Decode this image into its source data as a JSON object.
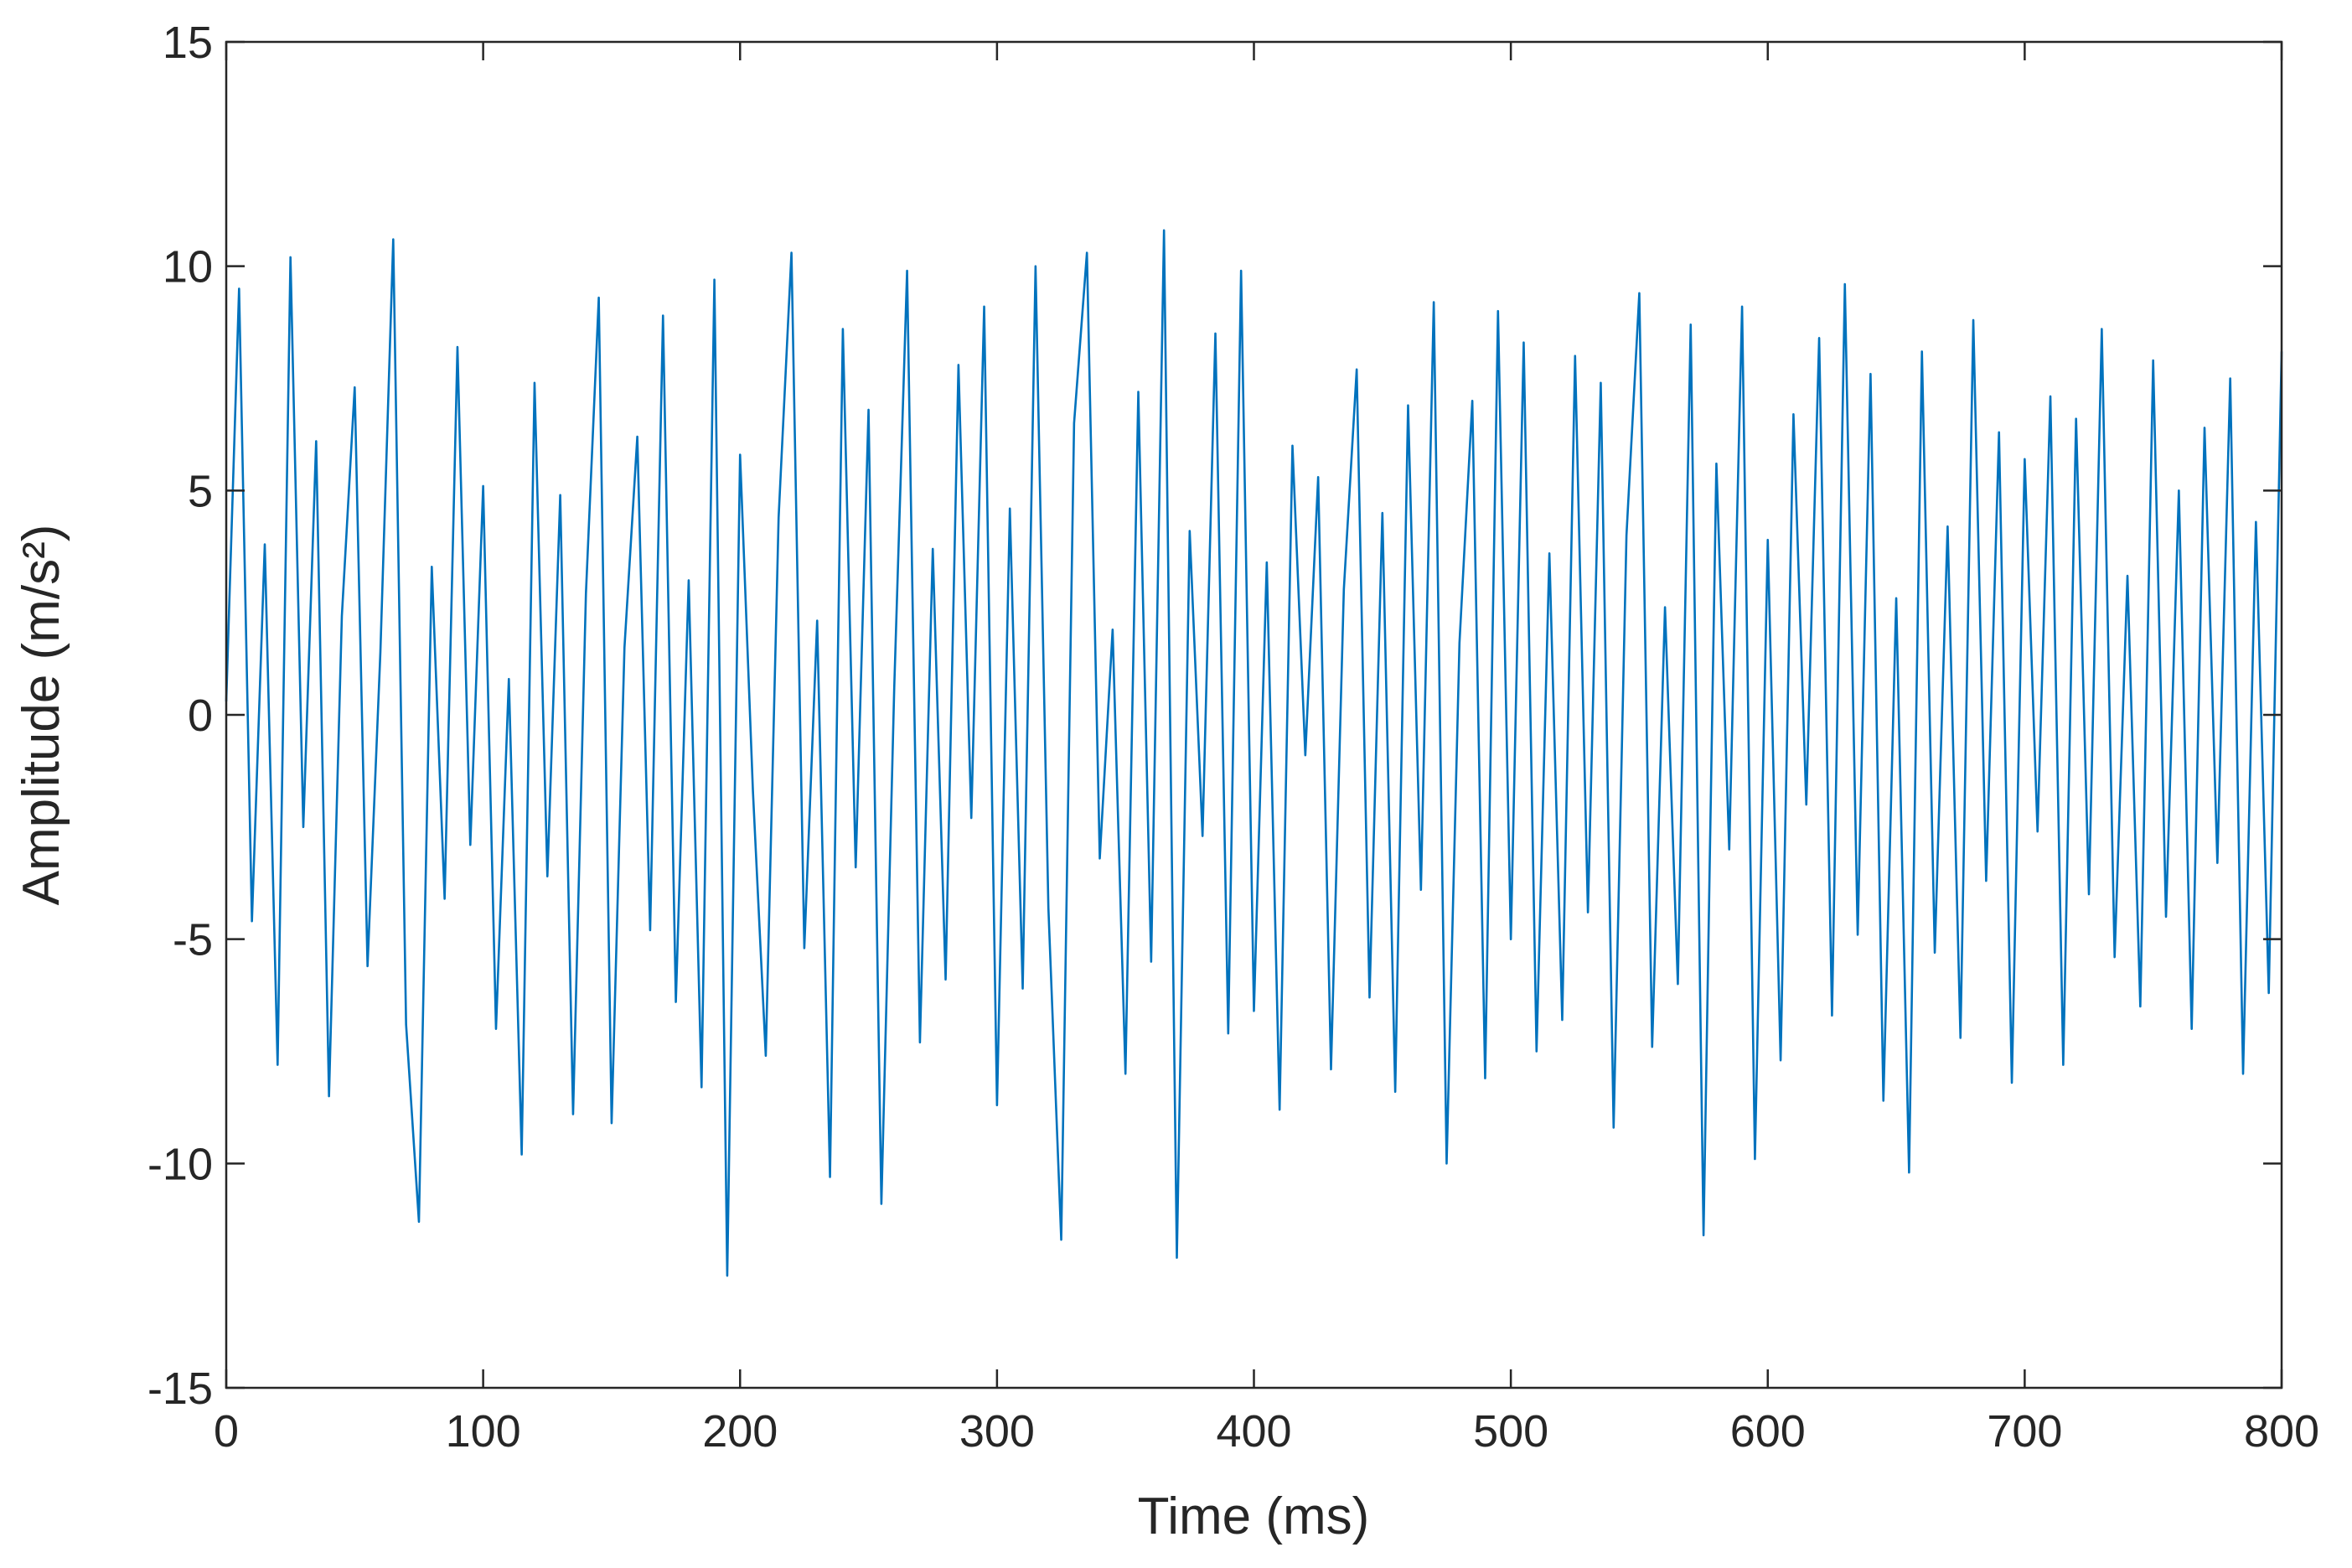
{
  "chart_data": {
    "type": "line",
    "xlabel": "Time (ms)",
    "ylabel": "Amplitude (m/s²)",
    "x": [
      0,
      5,
      10,
      15,
      20,
      25,
      30,
      35,
      40,
      45,
      50,
      55,
      60,
      65,
      70,
      75,
      80,
      85,
      90,
      95,
      100,
      105,
      110,
      115,
      120,
      125,
      130,
      135,
      140,
      145,
      150,
      155,
      160,
      165,
      170,
      175,
      180,
      185,
      190,
      195,
      200,
      205,
      210,
      215,
      220,
      225,
      230,
      235,
      240,
      245,
      250,
      255,
      260,
      265,
      270,
      275,
      280,
      285,
      290,
      295,
      300,
      305,
      310,
      315,
      320,
      325,
      330,
      335,
      340,
      345,
      350,
      355,
      360,
      365,
      370,
      375,
      380,
      385,
      390,
      395,
      400,
      405,
      410,
      415,
      420,
      425,
      430,
      435,
      440,
      445,
      450,
      455,
      460,
      465,
      470,
      475,
      480,
      485,
      490,
      495,
      500,
      505,
      510,
      515,
      520,
      525,
      530,
      535,
      540,
      545,
      550,
      555,
      560,
      565,
      570,
      575,
      580,
      585,
      590,
      595,
      600,
      605,
      610,
      615,
      620,
      625,
      630,
      635,
      640,
      645,
      650,
      655,
      660,
      665,
      670,
      675,
      680,
      685,
      690,
      695,
      700,
      705,
      710,
      715,
      720,
      725,
      730,
      735,
      740,
      745,
      750,
      755,
      760,
      765,
      770,
      775,
      780,
      785,
      790,
      795,
      800
    ],
    "series": [
      {
        "name": "Amplitude",
        "color": "#0072bd",
        "values": [
          0.3,
          9.5,
          -4.6,
          3.8,
          -7.8,
          10.2,
          -2.5,
          6.1,
          -8.5,
          2.2,
          7.3,
          -5.6,
          1.4,
          10.6,
          -6.9,
          -11.3,
          3.3,
          -4.1,
          8.2,
          -2.9,
          5.1,
          -7.0,
          0.8,
          -9.8,
          7.4,
          -3.6,
          4.9,
          -8.9,
          2.7,
          9.3,
          -9.1,
          1.5,
          6.2,
          -4.8,
          8.9,
          -6.4,
          3.0,
          -8.3,
          9.7,
          -12.5,
          5.8,
          -1.7,
          -7.6,
          4.4,
          10.3,
          -5.2,
          2.1,
          -10.3,
          8.6,
          -3.4,
          6.8,
          -10.9,
          0.6,
          9.9,
          -7.3,
          3.7,
          -5.9,
          7.8,
          -2.3,
          9.1,
          -8.7,
          4.6,
          -6.1,
          10.0,
          -4.3,
          -11.7,
          6.5,
          10.3,
          -3.2,
          1.9,
          -8.0,
          7.2,
          -5.5,
          10.8,
          -12.1,
          4.1,
          -2.7,
          8.5,
          -7.1,
          9.9,
          -6.6,
          3.4,
          -8.8,
          6.0,
          -0.9,
          5.3,
          -7.9,
          2.8,
          7.7,
          -6.3,
          4.5,
          -8.4,
          6.9,
          -3.9,
          9.2,
          -10.0,
          1.6,
          7.0,
          -8.1,
          9.0,
          -5.0,
          8.3,
          -7.5,
          3.6,
          -6.8,
          8.0,
          -4.4,
          7.4,
          -9.2,
          4.0,
          9.4,
          -7.4,
          2.4,
          -6.0,
          8.7,
          -11.6,
          5.6,
          -3.0,
          9.1,
          -9.9,
          3.9,
          -7.7,
          6.7,
          -2.0,
          8.4,
          -6.7,
          9.6,
          -4.9,
          7.6,
          -8.6,
          2.6,
          -10.2,
          8.1,
          -5.3,
          4.2,
          -7.2,
          8.8,
          -3.7,
          6.3,
          -8.2,
          5.7,
          -2.6,
          7.1,
          -7.8,
          6.6,
          -4.0,
          8.6,
          -5.4,
          3.1,
          -6.5,
          7.9,
          -4.5,
          5.0,
          -7.0,
          6.4,
          -3.3,
          7.5,
          -8.0,
          4.3,
          -6.2,
          8.1
        ]
      }
    ],
    "xlim": [
      0,
      800
    ],
    "xticks": [
      0,
      100,
      200,
      300,
      400,
      500,
      600,
      700,
      800
    ],
    "ylim": [
      -15,
      15
    ],
    "yticks": [
      -15,
      -10,
      -5,
      0,
      5,
      10,
      15
    ],
    "grid": false
  }
}
